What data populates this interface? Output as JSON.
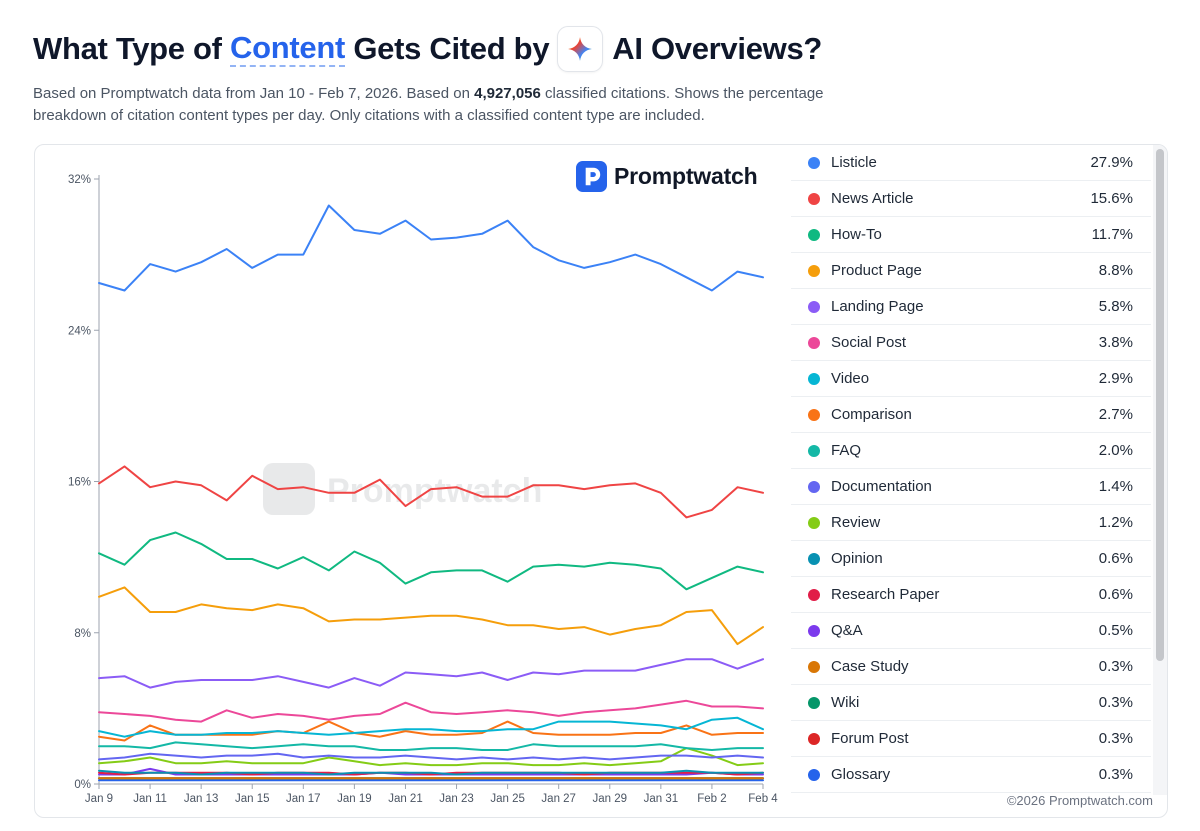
{
  "header": {
    "title_before": "What Type of",
    "title_highlight": "Content",
    "title_middle": "Gets Cited by",
    "title_after": "AI Overviews?"
  },
  "subtitle": {
    "part1": "Based on Promptwatch data from Jan 10 - Feb 7, 2026. Based on",
    "count": "4,927,056",
    "part2": "classified citations. Shows the percentage breakdown of citation content types per day. Only citations with a classified content type are included."
  },
  "brand": {
    "name": "Promptwatch",
    "watermark": "Promptwatch"
  },
  "copyright": "©2026 Promptwatch.com",
  "colors": {
    "accent": "#2563eb",
    "grid": "#e5e7eb",
    "axis": "#9ca3af"
  },
  "chart_data": {
    "type": "line",
    "x": [
      "Jan 9",
      "Jan 10",
      "Jan 11",
      "Jan 12",
      "Jan 13",
      "Jan 14",
      "Jan 15",
      "Jan 16",
      "Jan 17",
      "Jan 18",
      "Jan 19",
      "Jan 20",
      "Jan 21",
      "Jan 22",
      "Jan 23",
      "Jan 24",
      "Jan 25",
      "Jan 26",
      "Jan 27",
      "Jan 28",
      "Jan 29",
      "Jan 30",
      "Jan 31",
      "Feb 1",
      "Feb 2",
      "Feb 3",
      "Feb 4"
    ],
    "x_tick_labels": [
      "Jan 9",
      "Jan 11",
      "Jan 13",
      "Jan 15",
      "Jan 17",
      "Jan 19",
      "Jan 21",
      "Jan 23",
      "Jan 25",
      "Jan 27",
      "Jan 29",
      "Jan 31",
      "Feb 2",
      "Feb 4"
    ],
    "y_ticks": [
      "0%",
      "8%",
      "16%",
      "24%",
      "32%"
    ],
    "y_tick_values": [
      0,
      8,
      16,
      24,
      32
    ],
    "ylim": [
      0,
      32
    ],
    "grid": false,
    "legend_position": "right",
    "series": [
      {
        "name": "Listicle",
        "value_label": "27.9%",
        "color": "#3b82f6",
        "values": [
          26.5,
          26.1,
          27.5,
          27.1,
          27.6,
          28.3,
          27.3,
          28.0,
          28.0,
          30.6,
          29.3,
          29.1,
          29.8,
          28.8,
          28.9,
          29.1,
          29.8,
          28.4,
          27.7,
          27.3,
          27.6,
          28.0,
          27.5,
          26.8,
          26.1,
          27.1,
          26.8
        ]
      },
      {
        "name": "News Article",
        "value_label": "15.6%",
        "color": "#ef4444",
        "values": [
          15.9,
          16.8,
          15.7,
          16.0,
          15.8,
          15.0,
          16.3,
          15.6,
          15.7,
          15.4,
          15.4,
          16.1,
          14.7,
          15.6,
          15.7,
          15.2,
          15.2,
          15.8,
          15.8,
          15.6,
          15.8,
          15.9,
          15.4,
          14.1,
          14.5,
          15.7,
          15.4
        ]
      },
      {
        "name": "How-To",
        "value_label": "11.7%",
        "color": "#10b981",
        "values": [
          12.2,
          11.6,
          12.9,
          13.3,
          12.7,
          11.9,
          11.9,
          11.4,
          12.0,
          11.3,
          12.3,
          11.7,
          10.6,
          11.2,
          11.3,
          11.3,
          10.7,
          11.5,
          11.6,
          11.5,
          11.7,
          11.6,
          11.4,
          10.3,
          10.9,
          11.5,
          11.2
        ]
      },
      {
        "name": "Product Page",
        "value_label": "8.8%",
        "color": "#f59e0b",
        "values": [
          9.9,
          10.4,
          9.1,
          9.1,
          9.5,
          9.3,
          9.2,
          9.5,
          9.3,
          8.6,
          8.7,
          8.7,
          8.8,
          8.9,
          8.9,
          8.7,
          8.4,
          8.4,
          8.2,
          8.3,
          7.9,
          8.2,
          8.4,
          9.1,
          9.2,
          7.4,
          8.3
        ]
      },
      {
        "name": "Landing Page",
        "value_label": "5.8%",
        "color": "#8b5cf6",
        "values": [
          5.6,
          5.7,
          5.1,
          5.4,
          5.5,
          5.5,
          5.5,
          5.7,
          5.4,
          5.1,
          5.6,
          5.2,
          5.9,
          5.8,
          5.7,
          5.9,
          5.5,
          5.9,
          5.8,
          6.0,
          6.0,
          6.0,
          6.3,
          6.6,
          6.6,
          6.1,
          6.6
        ]
      },
      {
        "name": "Social Post",
        "value_label": "3.8%",
        "color": "#ec4899",
        "values": [
          3.8,
          3.7,
          3.6,
          3.4,
          3.3,
          3.9,
          3.5,
          3.7,
          3.6,
          3.4,
          3.6,
          3.7,
          4.3,
          3.8,
          3.7,
          3.8,
          3.9,
          3.8,
          3.6,
          3.8,
          3.9,
          4.0,
          4.2,
          4.4,
          4.1,
          4.1,
          4.0
        ]
      },
      {
        "name": "Video",
        "value_label": "2.9%",
        "color": "#06b6d4",
        "values": [
          2.8,
          2.5,
          2.8,
          2.6,
          2.6,
          2.7,
          2.7,
          2.8,
          2.7,
          2.6,
          2.7,
          2.8,
          2.9,
          2.9,
          2.8,
          2.8,
          2.9,
          2.9,
          3.3,
          3.3,
          3.3,
          3.2,
          3.1,
          2.9,
          3.4,
          3.5,
          2.9
        ]
      },
      {
        "name": "Comparison",
        "value_label": "2.7%",
        "color": "#f97316",
        "values": [
          2.5,
          2.3,
          3.1,
          2.6,
          2.6,
          2.6,
          2.6,
          2.8,
          2.7,
          3.3,
          2.7,
          2.5,
          2.8,
          2.6,
          2.6,
          2.7,
          3.3,
          2.7,
          2.6,
          2.6,
          2.6,
          2.7,
          2.7,
          3.1,
          2.6,
          2.7,
          2.7
        ]
      },
      {
        "name": "FAQ",
        "value_label": "2.0%",
        "color": "#14b8a6",
        "values": [
          2.0,
          2.0,
          1.9,
          2.2,
          2.1,
          2.0,
          1.9,
          2.0,
          2.1,
          2.0,
          2.0,
          1.8,
          1.8,
          1.9,
          1.9,
          1.8,
          1.8,
          2.1,
          2.0,
          2.0,
          2.0,
          2.0,
          2.1,
          1.9,
          1.8,
          1.9,
          1.9
        ]
      },
      {
        "name": "Documentation",
        "value_label": "1.4%",
        "color": "#6366f1",
        "values": [
          1.3,
          1.4,
          1.6,
          1.5,
          1.4,
          1.5,
          1.5,
          1.6,
          1.4,
          1.5,
          1.4,
          1.4,
          1.5,
          1.4,
          1.3,
          1.4,
          1.3,
          1.4,
          1.3,
          1.4,
          1.3,
          1.4,
          1.5,
          1.5,
          1.4,
          1.5,
          1.4
        ]
      },
      {
        "name": "Review",
        "value_label": "1.2%",
        "color": "#84cc16",
        "values": [
          1.1,
          1.2,
          1.4,
          1.1,
          1.1,
          1.2,
          1.1,
          1.1,
          1.1,
          1.4,
          1.2,
          1.0,
          1.1,
          1.0,
          1.0,
          1.1,
          1.1,
          1.0,
          1.0,
          1.1,
          1.0,
          1.1,
          1.2,
          1.9,
          1.5,
          1.0,
          1.1
        ]
      },
      {
        "name": "Opinion",
        "value_label": "0.6%",
        "color": "#0891b2",
        "values": [
          0.7,
          0.6,
          0.6,
          0.6,
          0.5,
          0.6,
          0.6,
          0.6,
          0.6,
          0.5,
          0.6,
          0.6,
          0.6,
          0.6,
          0.5,
          0.6,
          0.6,
          0.6,
          0.6,
          0.6,
          0.6,
          0.6,
          0.6,
          0.7,
          0.6,
          0.6,
          0.6
        ]
      },
      {
        "name": "Research Paper",
        "value_label": "0.6%",
        "color": "#e11d48",
        "values": [
          0.6,
          0.5,
          0.6,
          0.6,
          0.6,
          0.6,
          0.5,
          0.6,
          0.6,
          0.6,
          0.5,
          0.6,
          0.6,
          0.5,
          0.6,
          0.6,
          0.6,
          0.6,
          0.6,
          0.5,
          0.6,
          0.6,
          0.6,
          0.6,
          0.6,
          0.5,
          0.6
        ]
      },
      {
        "name": "Q&A",
        "value_label": "0.5%",
        "color": "#7c3aed",
        "values": [
          0.5,
          0.5,
          0.8,
          0.5,
          0.5,
          0.5,
          0.5,
          0.5,
          0.5,
          0.5,
          0.5,
          0.6,
          0.5,
          0.5,
          0.5,
          0.5,
          0.5,
          0.5,
          0.5,
          0.5,
          0.5,
          0.5,
          0.5,
          0.5,
          0.6,
          0.5,
          0.5
        ]
      },
      {
        "name": "Case Study",
        "value_label": "0.3%",
        "color": "#d97706",
        "values": [
          0.3,
          0.3,
          0.3,
          0.3,
          0.3,
          0.3,
          0.3,
          0.3,
          0.3,
          0.3,
          0.3,
          0.3,
          0.3,
          0.3,
          0.3,
          0.3,
          0.3,
          0.3,
          0.3,
          0.3,
          0.3,
          0.3,
          0.3,
          0.3,
          0.3,
          0.3,
          0.3
        ]
      },
      {
        "name": "Wiki",
        "value_label": "0.3%",
        "color": "#059669",
        "values": [
          0.3,
          0.3,
          0.3,
          0.3,
          0.3,
          0.3,
          0.3,
          0.3,
          0.3,
          0.3,
          0.3,
          0.3,
          0.3,
          0.3,
          0.3,
          0.3,
          0.3,
          0.3,
          0.3,
          0.3,
          0.3,
          0.3,
          0.3,
          0.3,
          0.3,
          0.3,
          0.3
        ]
      },
      {
        "name": "Forum Post",
        "value_label": "0.3%",
        "color": "#dc2626",
        "values": [
          0.3,
          0.3,
          0.3,
          0.3,
          0.3,
          0.3,
          0.3,
          0.3,
          0.3,
          0.3,
          0.3,
          0.3,
          0.3,
          0.3,
          0.3,
          0.3,
          0.3,
          0.3,
          0.3,
          0.3,
          0.3,
          0.3,
          0.3,
          0.3,
          0.3,
          0.3,
          0.3
        ]
      },
      {
        "name": "Glossary",
        "value_label": "0.3%",
        "color": "#2563eb",
        "values": [
          0.2,
          0.2,
          0.2,
          0.2,
          0.2,
          0.2,
          0.2,
          0.2,
          0.2,
          0.2,
          0.2,
          0.2,
          0.2,
          0.2,
          0.2,
          0.2,
          0.2,
          0.2,
          0.2,
          0.2,
          0.2,
          0.2,
          0.2,
          0.2,
          0.2,
          0.2,
          0.2
        ]
      }
    ]
  }
}
